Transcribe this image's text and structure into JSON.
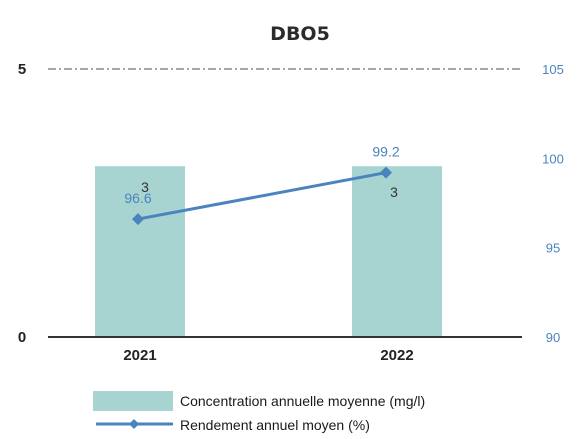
{
  "chart_data": {
    "type": "bar",
    "title": "DBO5",
    "categories": [
      "2021",
      "2022"
    ],
    "series": [
      {
        "name": "Concentration annuelle moyenne (mg/l)",
        "type": "bar",
        "axis": "left",
        "values": [
          3,
          3
        ],
        "labels": [
          "3",
          "3"
        ]
      },
      {
        "name": "Rendement annuel moyen (%)",
        "type": "line",
        "axis": "right",
        "values": [
          96.6,
          99.2
        ],
        "labels": [
          "96.6",
          "99.2"
        ]
      }
    ],
    "y_left": {
      "min": 0,
      "max": 5,
      "ticks": [
        "0",
        "5"
      ]
    },
    "y_right": {
      "min": 90,
      "max": 105,
      "ticks": [
        "90",
        "95",
        "100",
        "105"
      ]
    },
    "grid": false,
    "legend_position": "bottom",
    "colors": {
      "bar": "#a7d3d0",
      "line": "#4a84bd"
    }
  }
}
